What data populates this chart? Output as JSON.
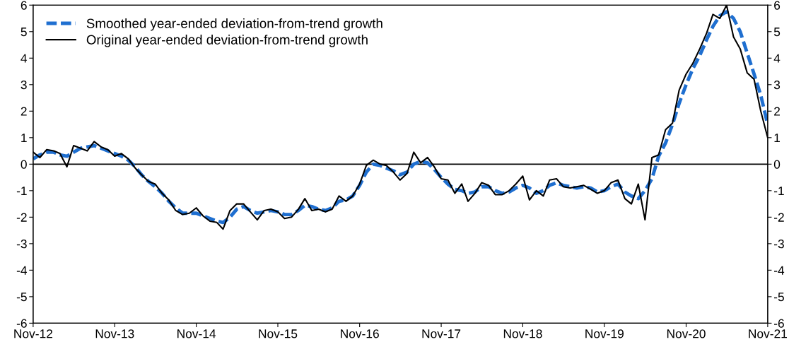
{
  "chart_data": {
    "type": "line",
    "x": [
      "2012-11",
      "2012-12",
      "2013-01",
      "2013-02",
      "2013-03",
      "2013-04",
      "2013-05",
      "2013-06",
      "2013-07",
      "2013-08",
      "2013-09",
      "2013-10",
      "2013-11",
      "2013-12",
      "2014-01",
      "2014-02",
      "2014-03",
      "2014-04",
      "2014-05",
      "2014-06",
      "2014-07",
      "2014-08",
      "2014-09",
      "2014-10",
      "2014-11",
      "2014-12",
      "2015-01",
      "2015-02",
      "2015-03",
      "2015-04",
      "2015-05",
      "2015-06",
      "2015-07",
      "2015-08",
      "2015-09",
      "2015-10",
      "2015-11",
      "2015-12",
      "2016-01",
      "2016-02",
      "2016-03",
      "2016-04",
      "2016-05",
      "2016-06",
      "2016-07",
      "2016-08",
      "2016-09",
      "2016-10",
      "2016-11",
      "2016-12",
      "2017-01",
      "2017-02",
      "2017-03",
      "2017-04",
      "2017-05",
      "2017-06",
      "2017-07",
      "2017-08",
      "2017-09",
      "2017-10",
      "2017-11",
      "2017-12",
      "2018-01",
      "2018-02",
      "2018-03",
      "2018-04",
      "2018-05",
      "2018-06",
      "2018-07",
      "2018-08",
      "2018-09",
      "2018-10",
      "2018-11",
      "2018-12",
      "2019-01",
      "2019-02",
      "2019-03",
      "2019-04",
      "2019-05",
      "2019-06",
      "2019-07",
      "2019-08",
      "2019-09",
      "2019-10",
      "2019-11",
      "2019-12",
      "2020-01",
      "2020-02",
      "2020-03",
      "2020-04",
      "2020-05",
      "2020-06",
      "2020-07",
      "2020-08",
      "2020-09",
      "2020-10",
      "2020-11",
      "2020-12",
      "2021-01",
      "2021-02",
      "2021-03",
      "2021-04",
      "2021-05",
      "2021-06",
      "2021-07",
      "2021-08",
      "2021-09",
      "2021-10",
      "2021-11"
    ],
    "series": [
      {
        "name": "Smoothed year-ended deviation-from-trend growth",
        "color": "#1f6fd0",
        "line_style": "dashed",
        "values": [
          0.2,
          0.35,
          0.45,
          0.45,
          0.35,
          0.3,
          0.45,
          0.6,
          0.65,
          0.7,
          0.6,
          0.5,
          0.4,
          0.3,
          0.15,
          -0.1,
          -0.4,
          -0.65,
          -0.85,
          -1.1,
          -1.4,
          -1.65,
          -1.85,
          -1.85,
          -1.85,
          -1.95,
          -2.05,
          -2.15,
          -2.2,
          -2.0,
          -1.7,
          -1.6,
          -1.75,
          -1.85,
          -1.8,
          -1.75,
          -1.8,
          -1.9,
          -1.9,
          -1.75,
          -1.55,
          -1.6,
          -1.7,
          -1.75,
          -1.65,
          -1.4,
          -1.35,
          -1.2,
          -0.8,
          -0.3,
          0.0,
          -0.05,
          -0.15,
          -0.25,
          -0.4,
          -0.3,
          0.0,
          0.1,
          0.05,
          -0.2,
          -0.5,
          -0.75,
          -0.95,
          -1.0,
          -1.1,
          -1.05,
          -0.85,
          -0.85,
          -1.0,
          -1.1,
          -1.05,
          -0.9,
          -0.8,
          -0.9,
          -1.1,
          -1.0,
          -0.8,
          -0.7,
          -0.8,
          -0.85,
          -0.9,
          -0.85,
          -0.9,
          -1.05,
          -1.0,
          -0.85,
          -0.75,
          -1.05,
          -1.2,
          -1.3,
          -1.0,
          -0.55,
          0.3,
          0.8,
          1.5,
          2.3,
          3.0,
          3.6,
          4.1,
          4.7,
          5.2,
          5.6,
          5.75,
          5.5,
          5.0,
          4.2,
          3.4,
          2.6,
          1.5
        ]
      },
      {
        "name": "Original year-ended deviation-from-trend growth",
        "color": "#000000",
        "line_style": "solid",
        "values": [
          0.45,
          0.25,
          0.55,
          0.5,
          0.4,
          -0.1,
          0.7,
          0.6,
          0.5,
          0.85,
          0.65,
          0.55,
          0.3,
          0.4,
          0.2,
          -0.15,
          -0.4,
          -0.65,
          -0.75,
          -1.1,
          -1.35,
          -1.75,
          -1.9,
          -1.85,
          -1.65,
          -1.95,
          -2.15,
          -2.2,
          -2.45,
          -1.75,
          -1.5,
          -1.5,
          -1.8,
          -2.1,
          -1.75,
          -1.7,
          -1.8,
          -2.05,
          -2.0,
          -1.7,
          -1.3,
          -1.75,
          -1.7,
          -1.8,
          -1.7,
          -1.2,
          -1.4,
          -1.2,
          -0.75,
          -0.05,
          0.15,
          0.0,
          -0.05,
          -0.3,
          -0.6,
          -0.35,
          0.45,
          0.05,
          0.25,
          -0.1,
          -0.55,
          -0.6,
          -1.1,
          -0.75,
          -1.4,
          -1.1,
          -0.7,
          -0.8,
          -1.15,
          -1.15,
          -1.0,
          -0.75,
          -0.45,
          -1.35,
          -1.0,
          -1.2,
          -0.6,
          -0.55,
          -0.85,
          -0.9,
          -0.85,
          -0.8,
          -0.95,
          -1.1,
          -1.0,
          -0.7,
          -0.6,
          -1.3,
          -1.5,
          -0.75,
          -2.1,
          0.25,
          0.35,
          1.3,
          1.55,
          2.8,
          3.4,
          3.8,
          4.35,
          4.95,
          5.65,
          5.5,
          6.0,
          4.8,
          4.35,
          3.45,
          3.2,
          2.0,
          1.0
        ]
      }
    ],
    "xlim": [
      "2012-11",
      "2021-11"
    ],
    "xticks": [
      {
        "value": "2012-11",
        "label": "Nov-12"
      },
      {
        "value": "2013-11",
        "label": "Nov-13"
      },
      {
        "value": "2014-11",
        "label": "Nov-14"
      },
      {
        "value": "2015-11",
        "label": "Nov-15"
      },
      {
        "value": "2016-11",
        "label": "Nov-16"
      },
      {
        "value": "2017-11",
        "label": "Nov-17"
      },
      {
        "value": "2018-11",
        "label": "Nov-18"
      },
      {
        "value": "2019-11",
        "label": "Nov-19"
      },
      {
        "value": "2020-11",
        "label": "Nov-20"
      },
      {
        "value": "2021-11",
        "label": "Nov-21"
      }
    ],
    "ylim": [
      -6,
      6
    ],
    "yticks": [
      -6,
      -5,
      -4,
      -3,
      -2,
      -1,
      0,
      1,
      2,
      3,
      4,
      5,
      6
    ],
    "y2lim": [
      -6,
      6
    ],
    "y2ticks": [
      -6,
      -5,
      -4,
      -3,
      -2,
      -1,
      0,
      1,
      2,
      3,
      4,
      5,
      6
    ],
    "ref_lines": [
      {
        "axis": "y",
        "value": 0,
        "color": "#000000"
      }
    ],
    "legend": "top left",
    "grid": false
  }
}
